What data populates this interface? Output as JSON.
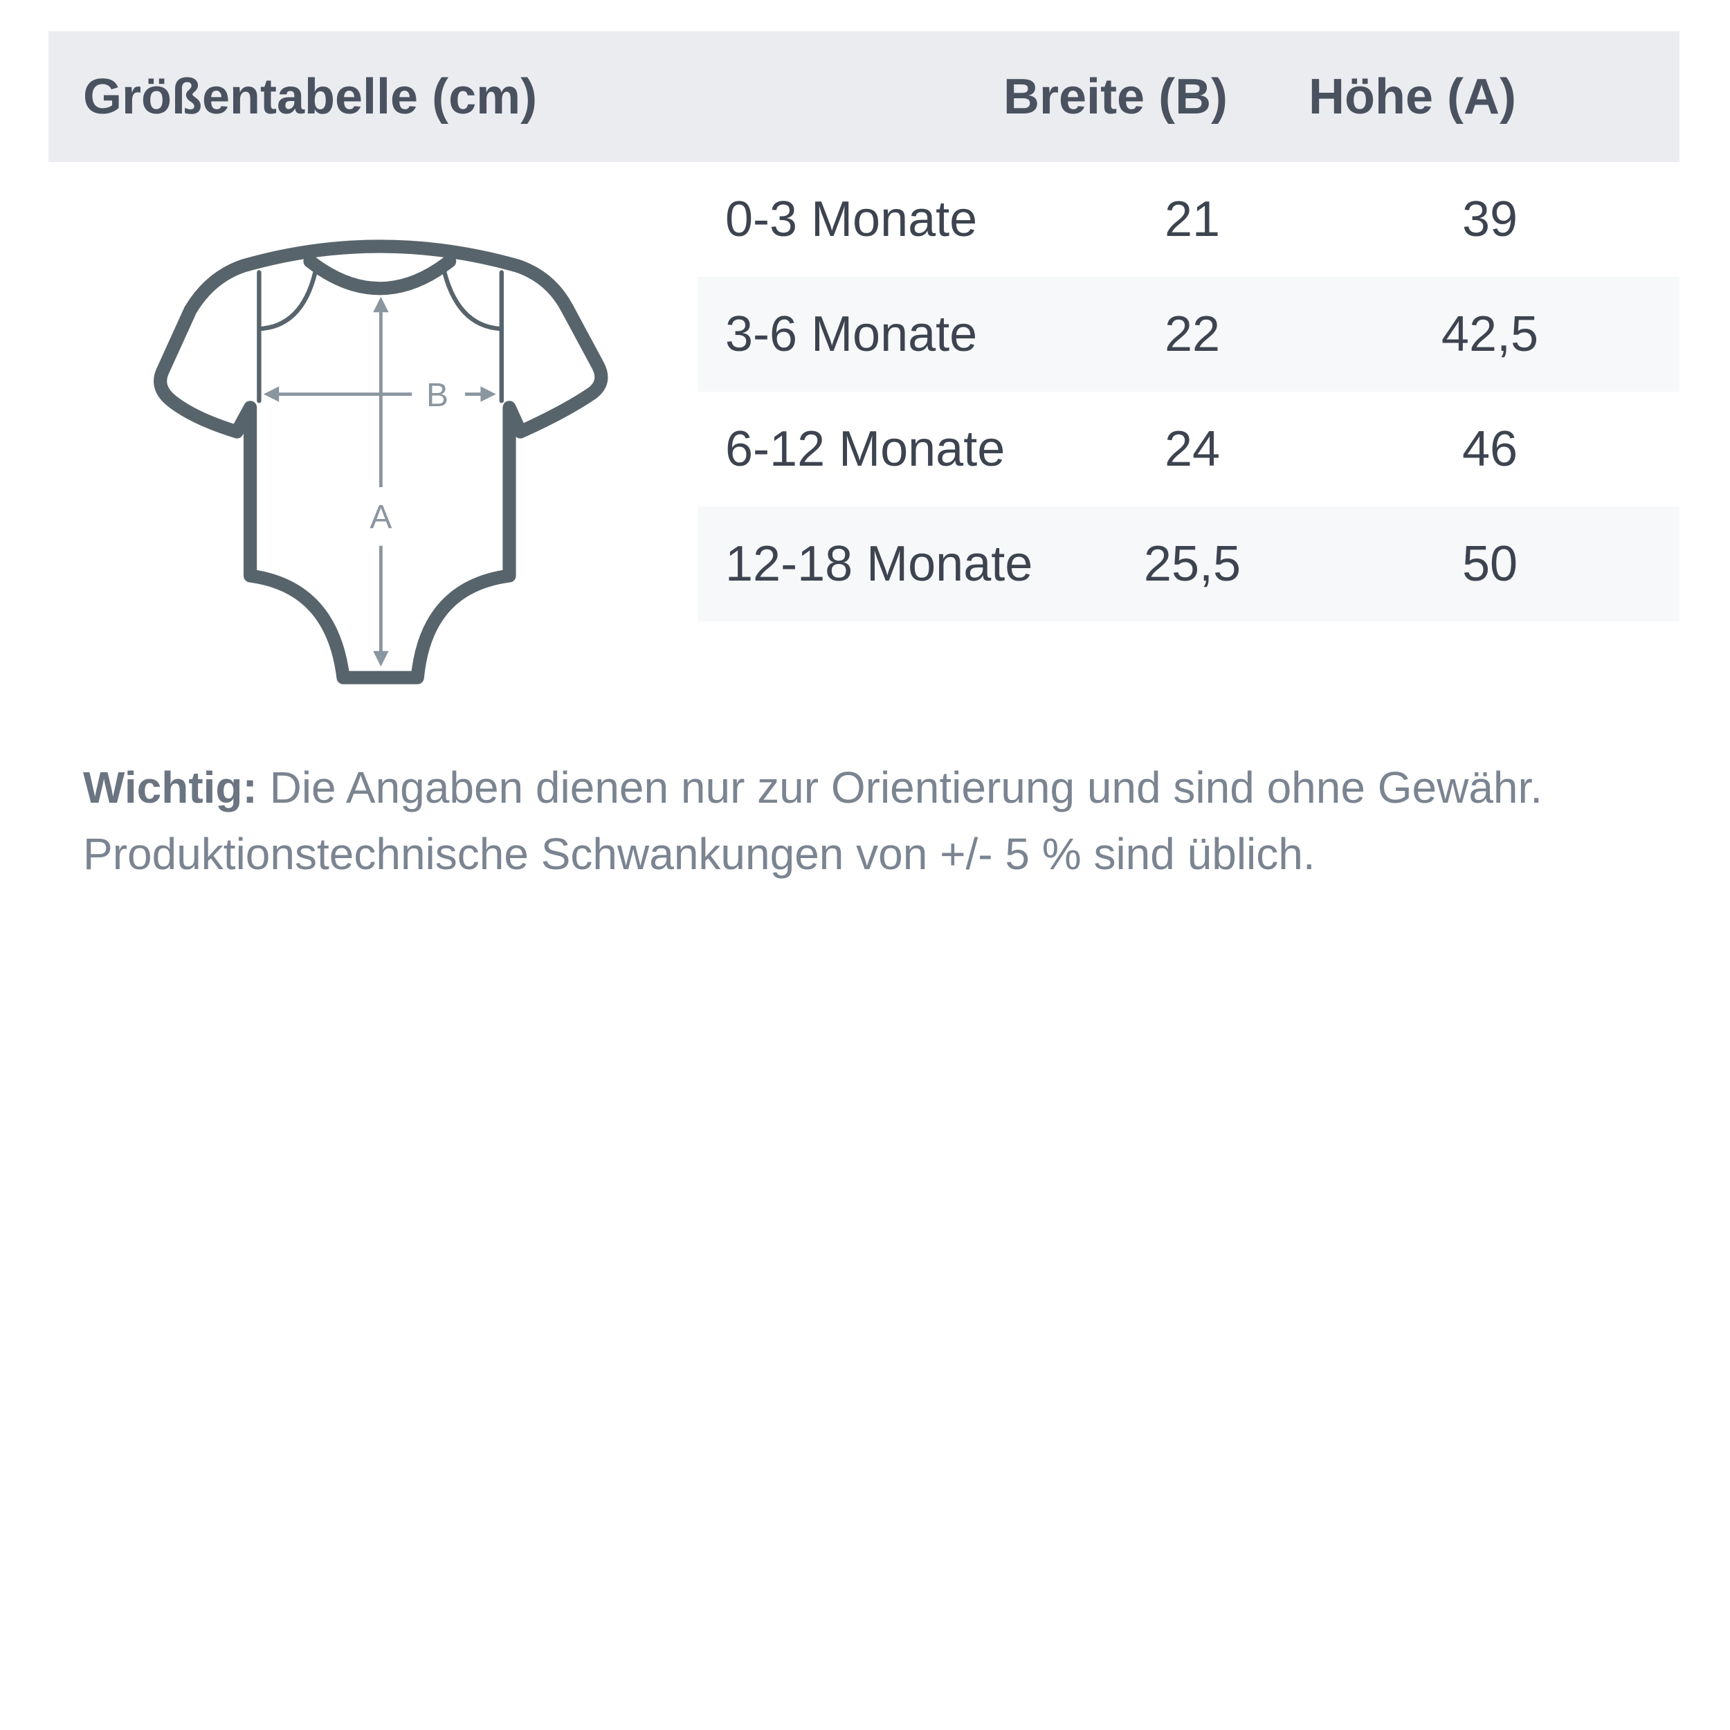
{
  "table": {
    "title": "Größentabelle (cm)",
    "columns": [
      "Breite (B)",
      "Höhe (A)"
    ],
    "rows": [
      {
        "size": "0-3 Monate",
        "breite": "21",
        "hoehe": "39"
      },
      {
        "size": "3-6 Monate",
        "breite": "22",
        "hoehe": "42,5"
      },
      {
        "size": "6-12 Monate",
        "breite": "24",
        "hoehe": "46"
      },
      {
        "size": "12-18 Monate",
        "breite": "25,5",
        "hoehe": "50"
      }
    ]
  },
  "illustration": {
    "label_b": "B",
    "label_a": "A",
    "icon": "baby-bodysuit-icon"
  },
  "note": {
    "bold": "Wichtig:",
    "line1": " Die Angaben dienen nur zur Orientierung und sind ohne Gewähr.",
    "line2": "Produktionstechnische Schwankungen von +/- 5 % sind üblich."
  },
  "colors": {
    "header_bg": "#ebecf0",
    "row_shade": "#f7f8fa",
    "outline": "#58646c",
    "arrow": "#8a96a0"
  }
}
